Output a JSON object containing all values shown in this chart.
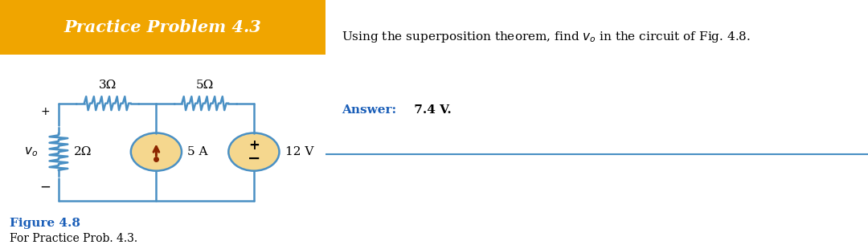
{
  "title": "Practice Problem 4.3",
  "title_bg": "#f0a500",
  "title_text_color": "#ffffff",
  "problem_text": "Using the superposition theorem, find $v_o$ in the circuit of Fig. 4.8.",
  "answer_label": "Answer:",
  "answer_value": " 7.4 V.",
  "answer_color": "#1a5eb8",
  "figure_label": "Figure 4.8",
  "figure_caption": "For Practice Prob. 4.3.",
  "circuit_line_color": "#4a90c4",
  "resistor_3_label": "3Ω",
  "resistor_5_label": "5Ω",
  "resistor_2_label": "2Ω",
  "current_source_label": "5 A",
  "voltage_source_label": "12 V",
  "vo_label": "$v_o$",
  "source_fill": "#f5d78e",
  "arrow_color": "#8B2500",
  "separator_line_color": "#4a90c4",
  "fig_width": 10.8,
  "fig_height": 3.1
}
